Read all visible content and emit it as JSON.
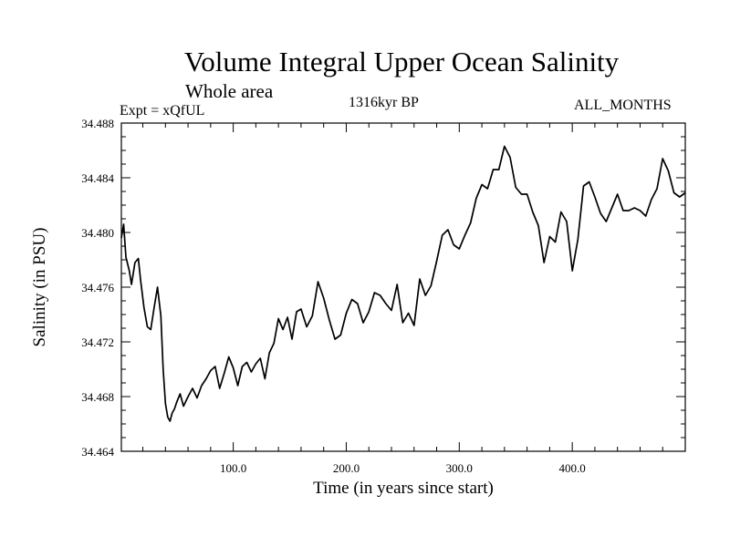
{
  "chart_data": {
    "type": "line",
    "title": "Volume Integral Upper Ocean Salinity",
    "subtitle": "Whole area",
    "left_label": "Expt = xQfUL",
    "center_label": "1316kyr BP",
    "right_label": "ALL_MONTHS",
    "xlabel": "Time (in years since start)",
    "ylabel": "Salinity (in PSU)",
    "xlim": [
      1,
      500
    ],
    "ylim": [
      34.464,
      34.488
    ],
    "xticks": [
      100.0,
      200.0,
      300.0,
      400.0
    ],
    "xtick_labels": [
      "100.0",
      "200.0",
      "300.0",
      "400.0"
    ],
    "yticks": [
      34.464,
      34.468,
      34.472,
      34.476,
      34.48,
      34.484,
      34.488
    ],
    "ytick_labels": [
      "34.464",
      "34.468",
      "34.472",
      "34.476",
      "34.480",
      "34.484",
      "34.488"
    ],
    "grid": false,
    "series": [
      {
        "name": "Salinity",
        "x": [
          1,
          3,
          5,
          8,
          10,
          13,
          16,
          18,
          21,
          24,
          27,
          30,
          33,
          36,
          38,
          40,
          42,
          44,
          46,
          48,
          50,
          53,
          56,
          60,
          64,
          68,
          72,
          76,
          80,
          84,
          88,
          92,
          96,
          100,
          104,
          108,
          112,
          116,
          120,
          124,
          128,
          132,
          136,
          140,
          144,
          148,
          152,
          156,
          160,
          165,
          170,
          175,
          180,
          185,
          190,
          195,
          200,
          205,
          210,
          215,
          220,
          225,
          230,
          235,
          240,
          245,
          250,
          255,
          260,
          265,
          270,
          275,
          280,
          285,
          290,
          295,
          300,
          305,
          310,
          315,
          320,
          325,
          330,
          335,
          340,
          345,
          350,
          355,
          360,
          365,
          370,
          375,
          380,
          385,
          390,
          395,
          400,
          405,
          410,
          415,
          420,
          425,
          430,
          435,
          440,
          445,
          450,
          455,
          460,
          465,
          470,
          475,
          480,
          485,
          490,
          495,
          500
        ],
        "values": [
          34.4796,
          34.4806,
          34.4782,
          34.4772,
          34.4762,
          34.4778,
          34.4781,
          34.4765,
          34.4745,
          34.4731,
          34.4729,
          34.4745,
          34.476,
          34.4739,
          34.47,
          34.4675,
          34.4665,
          34.4662,
          34.4668,
          34.4671,
          34.4676,
          34.4682,
          34.4673,
          34.468,
          34.4686,
          34.4679,
          34.4688,
          34.4693,
          34.4699,
          34.4702,
          34.4686,
          34.4697,
          34.4709,
          34.4701,
          34.4688,
          34.4702,
          34.4705,
          34.4698,
          34.4704,
          34.4708,
          34.4693,
          34.4712,
          34.4719,
          34.4737,
          34.4729,
          34.4738,
          34.4722,
          34.4742,
          34.4744,
          34.4731,
          34.4739,
          34.4764,
          34.4752,
          34.4736,
          34.4722,
          34.4725,
          34.4741,
          34.4751,
          34.4748,
          34.4734,
          34.4742,
          34.4756,
          34.4754,
          34.4748,
          34.4743,
          34.4762,
          34.4734,
          34.4741,
          34.4732,
          34.4766,
          34.4754,
          34.4761,
          34.4779,
          34.4798,
          34.4802,
          34.4791,
          34.4788,
          34.4798,
          34.4807,
          34.4825,
          34.4835,
          34.4832,
          34.4846,
          34.4846,
          34.4863,
          34.4855,
          34.4833,
          34.4828,
          34.4828,
          34.4815,
          34.4805,
          34.4778,
          34.4797,
          34.4793,
          34.4815,
          34.4808,
          34.4772,
          34.4795,
          34.4834,
          34.4837,
          34.4826,
          34.4814,
          34.4808,
          34.4818,
          34.4828,
          34.4816,
          34.4816,
          34.4818,
          34.4816,
          34.4812,
          34.4824,
          34.4832,
          34.4854,
          34.4845,
          34.4829,
          34.4826,
          34.4829
        ]
      }
    ]
  }
}
